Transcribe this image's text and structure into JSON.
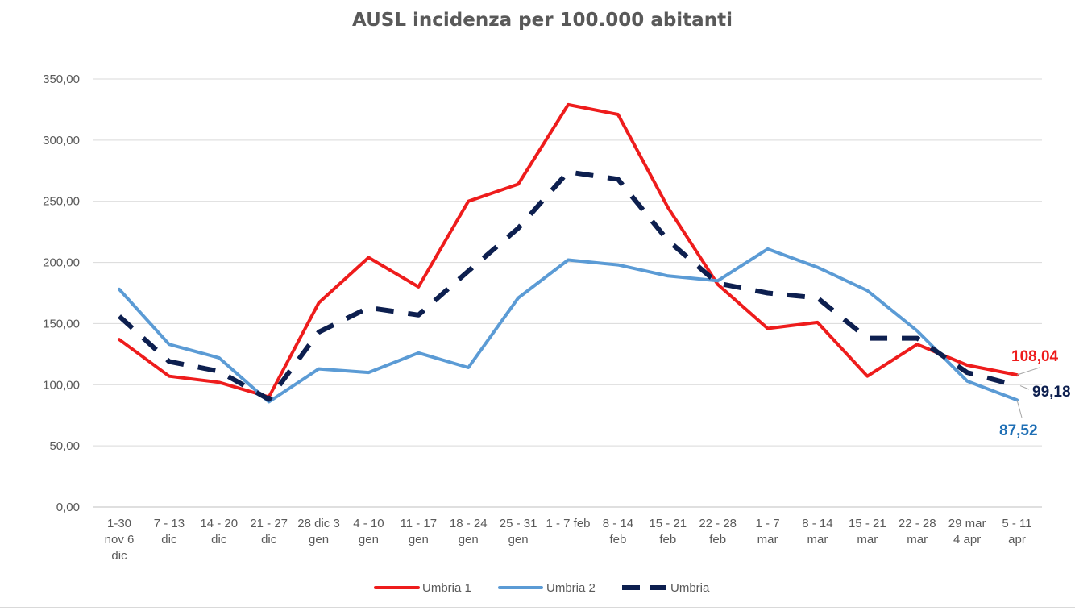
{
  "chart_data": {
    "type": "line",
    "title": "AUSL incidenza per 100.000 abitanti",
    "xlabel": "",
    "ylabel": "",
    "ylim": [
      0,
      350
    ],
    "yticks": [
      "0,00",
      "50,00",
      "100,00",
      "150,00",
      "200,00",
      "250,00",
      "300,00",
      "350,00"
    ],
    "ytick_values": [
      0,
      50,
      100,
      150,
      200,
      250,
      300,
      350
    ],
    "grid": true,
    "legend_position": "bottom",
    "categories": [
      [
        "1-30",
        "nov 6",
        "dic"
      ],
      [
        "7 - 13",
        "dic"
      ],
      [
        "14 - 20",
        "dic"
      ],
      [
        "21 - 27",
        "dic"
      ],
      [
        "28 dic 3",
        "gen"
      ],
      [
        "4 - 10",
        "gen"
      ],
      [
        "11 - 17",
        "gen"
      ],
      [
        "18 - 24",
        "gen"
      ],
      [
        "25 - 31",
        "gen"
      ],
      [
        "1 - 7 feb"
      ],
      [
        "8 - 14",
        "feb"
      ],
      [
        "15 - 21",
        "feb"
      ],
      [
        "22 - 28",
        "feb"
      ],
      [
        "1 - 7",
        "mar"
      ],
      [
        "8 - 14",
        "mar"
      ],
      [
        "15 - 21",
        "mar"
      ],
      [
        "22 - 28",
        "mar"
      ],
      [
        "29 mar",
        "4 apr"
      ],
      [
        "5 - 11",
        "apr"
      ]
    ],
    "series": [
      {
        "name": "Umbria 1",
        "color": "#ee1c1c",
        "style": "solid",
        "values": [
          137,
          107,
          102,
          90,
          167,
          204,
          180,
          250,
          264,
          329,
          321,
          245,
          182,
          146,
          151,
          107,
          133,
          116,
          108.04
        ],
        "end_label": "108,04"
      },
      {
        "name": "Umbria 2",
        "color": "#5b9bd5",
        "style": "solid",
        "values": [
          178,
          133,
          122,
          86,
          113,
          110,
          126,
          114,
          171,
          202,
          198,
          189,
          185,
          211,
          196,
          177,
          144,
          103,
          87.52
        ],
        "end_label": "87,52"
      },
      {
        "name": "Umbria",
        "color": "#0d1f4f",
        "style": "dashed",
        "values": [
          156,
          119,
          111,
          88,
          143,
          163,
          157,
          193,
          228,
          274,
          268,
          218,
          183,
          175,
          171,
          138,
          138,
          110,
          99.18
        ],
        "end_label": "99,18"
      }
    ]
  }
}
